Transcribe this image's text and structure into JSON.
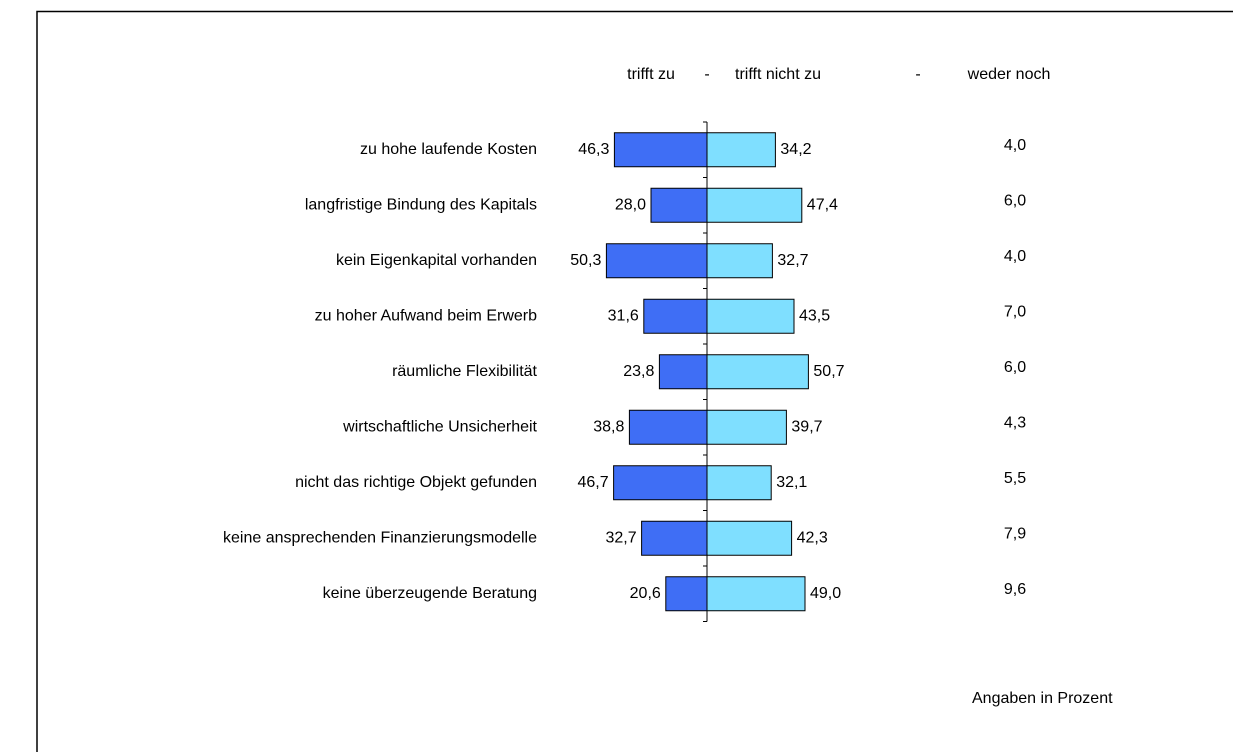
{
  "chart_data": {
    "type": "diverging_bar",
    "header_separator": "-",
    "note": "Angaben in Prozent",
    "categories": [
      "zu hohe laufende Kosten",
      "langfristige Bindung des Kapitals",
      "kein Eigenkapital vorhanden",
      "zu hoher Aufwand beim Erwerb",
      "räumliche Flexibilität",
      "wirtschaftliche Unsicherheit",
      "nicht das richtige Objekt gefunden",
      "keine ansprechenden Finanzierungsmodelle",
      "keine überzeugende Beratung"
    ],
    "series": [
      {
        "name": "trifft zu",
        "color": "#3f6ef5",
        "side": "left",
        "values": [
          46.3,
          28.0,
          50.3,
          31.6,
          23.8,
          38.8,
          46.7,
          32.7,
          20.6
        ],
        "value_labels": [
          "46,3",
          "28,0",
          "50,3",
          "31,6",
          "23,8",
          "38,8",
          "46,7",
          "32,7",
          "20,6"
        ]
      },
      {
        "name": "trifft nicht zu",
        "color": "#7fdfff",
        "side": "right",
        "values": [
          34.2,
          47.4,
          32.7,
          43.5,
          50.7,
          39.7,
          32.1,
          42.3,
          49.0
        ],
        "value_labels": [
          "34,2",
          "47,4",
          "32,7",
          "43,5",
          "50,7",
          "39,7",
          "32,1",
          "42,3",
          "49,0"
        ]
      },
      {
        "name": "weder noch",
        "side": "text",
        "values": [
          4.0,
          6.0,
          4.0,
          7.0,
          6.0,
          4.3,
          5.5,
          7.9,
          9.6
        ],
        "value_labels": [
          "4,0",
          "6,0",
          "4,0",
          "7,0",
          "6,0",
          "4,3",
          "5,5",
          "7,9",
          "9,6"
        ]
      }
    ]
  }
}
